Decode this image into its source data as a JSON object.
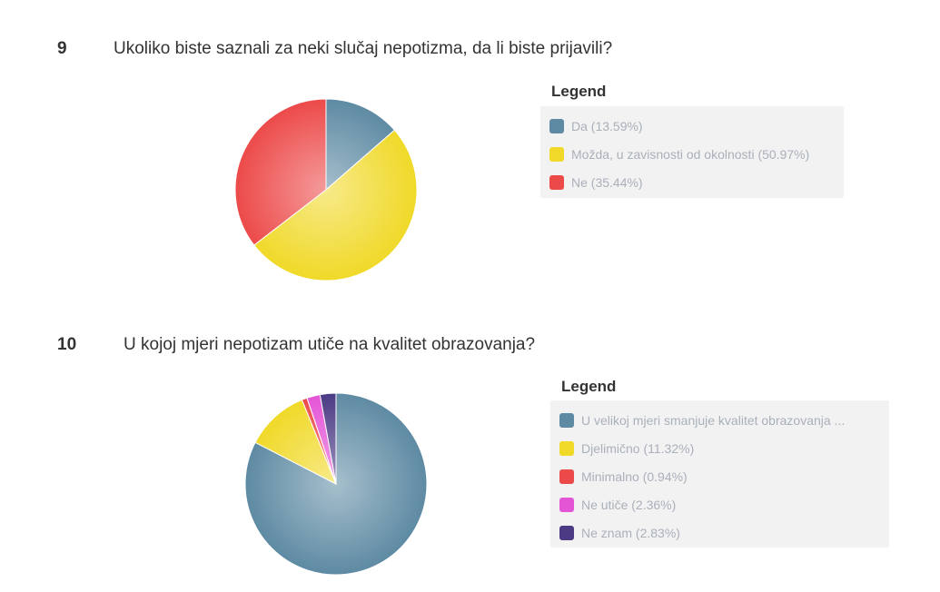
{
  "chart_data": [
    {
      "type": "pie",
      "number": "9",
      "title": "Ukoliko biste saznali za neki slučaj nepotizma, da li biste prijavili?",
      "legend_title": "Legend",
      "categories": [
        "Da",
        "Možda, u zavisnosti od okolnosti",
        "Ne"
      ],
      "values": [
        13.59,
        50.97,
        35.44
      ],
      "legend_labels": [
        "Da (13.59%)",
        "Možda, u zavisnosti od okolnosti (50.97%)",
        "Ne (35.44%)"
      ],
      "colors": [
        "#5e8aa3",
        "#f0d928",
        "#ec4a49"
      ]
    },
    {
      "type": "pie",
      "number": "10",
      "title": "U kojoj mjeri nepotizam utiče na kvalitet obrazovanja?",
      "legend_title": "Legend",
      "categories": [
        "U velikoj mjeri smanjuje kvalitet obrazovanja",
        "Djelimično",
        "Minimalno",
        "Ne utiče",
        "Ne znam"
      ],
      "values": [
        82.55,
        11.32,
        0.94,
        2.36,
        2.83
      ],
      "legend_labels": [
        "U velikoj mjeri smanjuje kvalitet obrazovanja ...",
        "Djelimično (11.32%)",
        "Minimalno (0.94%)",
        "Ne utiče (2.36%)",
        "Ne znam (2.83%)"
      ],
      "colors": [
        "#5e8aa3",
        "#f0d928",
        "#ec4a49",
        "#e455d6",
        "#4b3b85"
      ]
    }
  ]
}
